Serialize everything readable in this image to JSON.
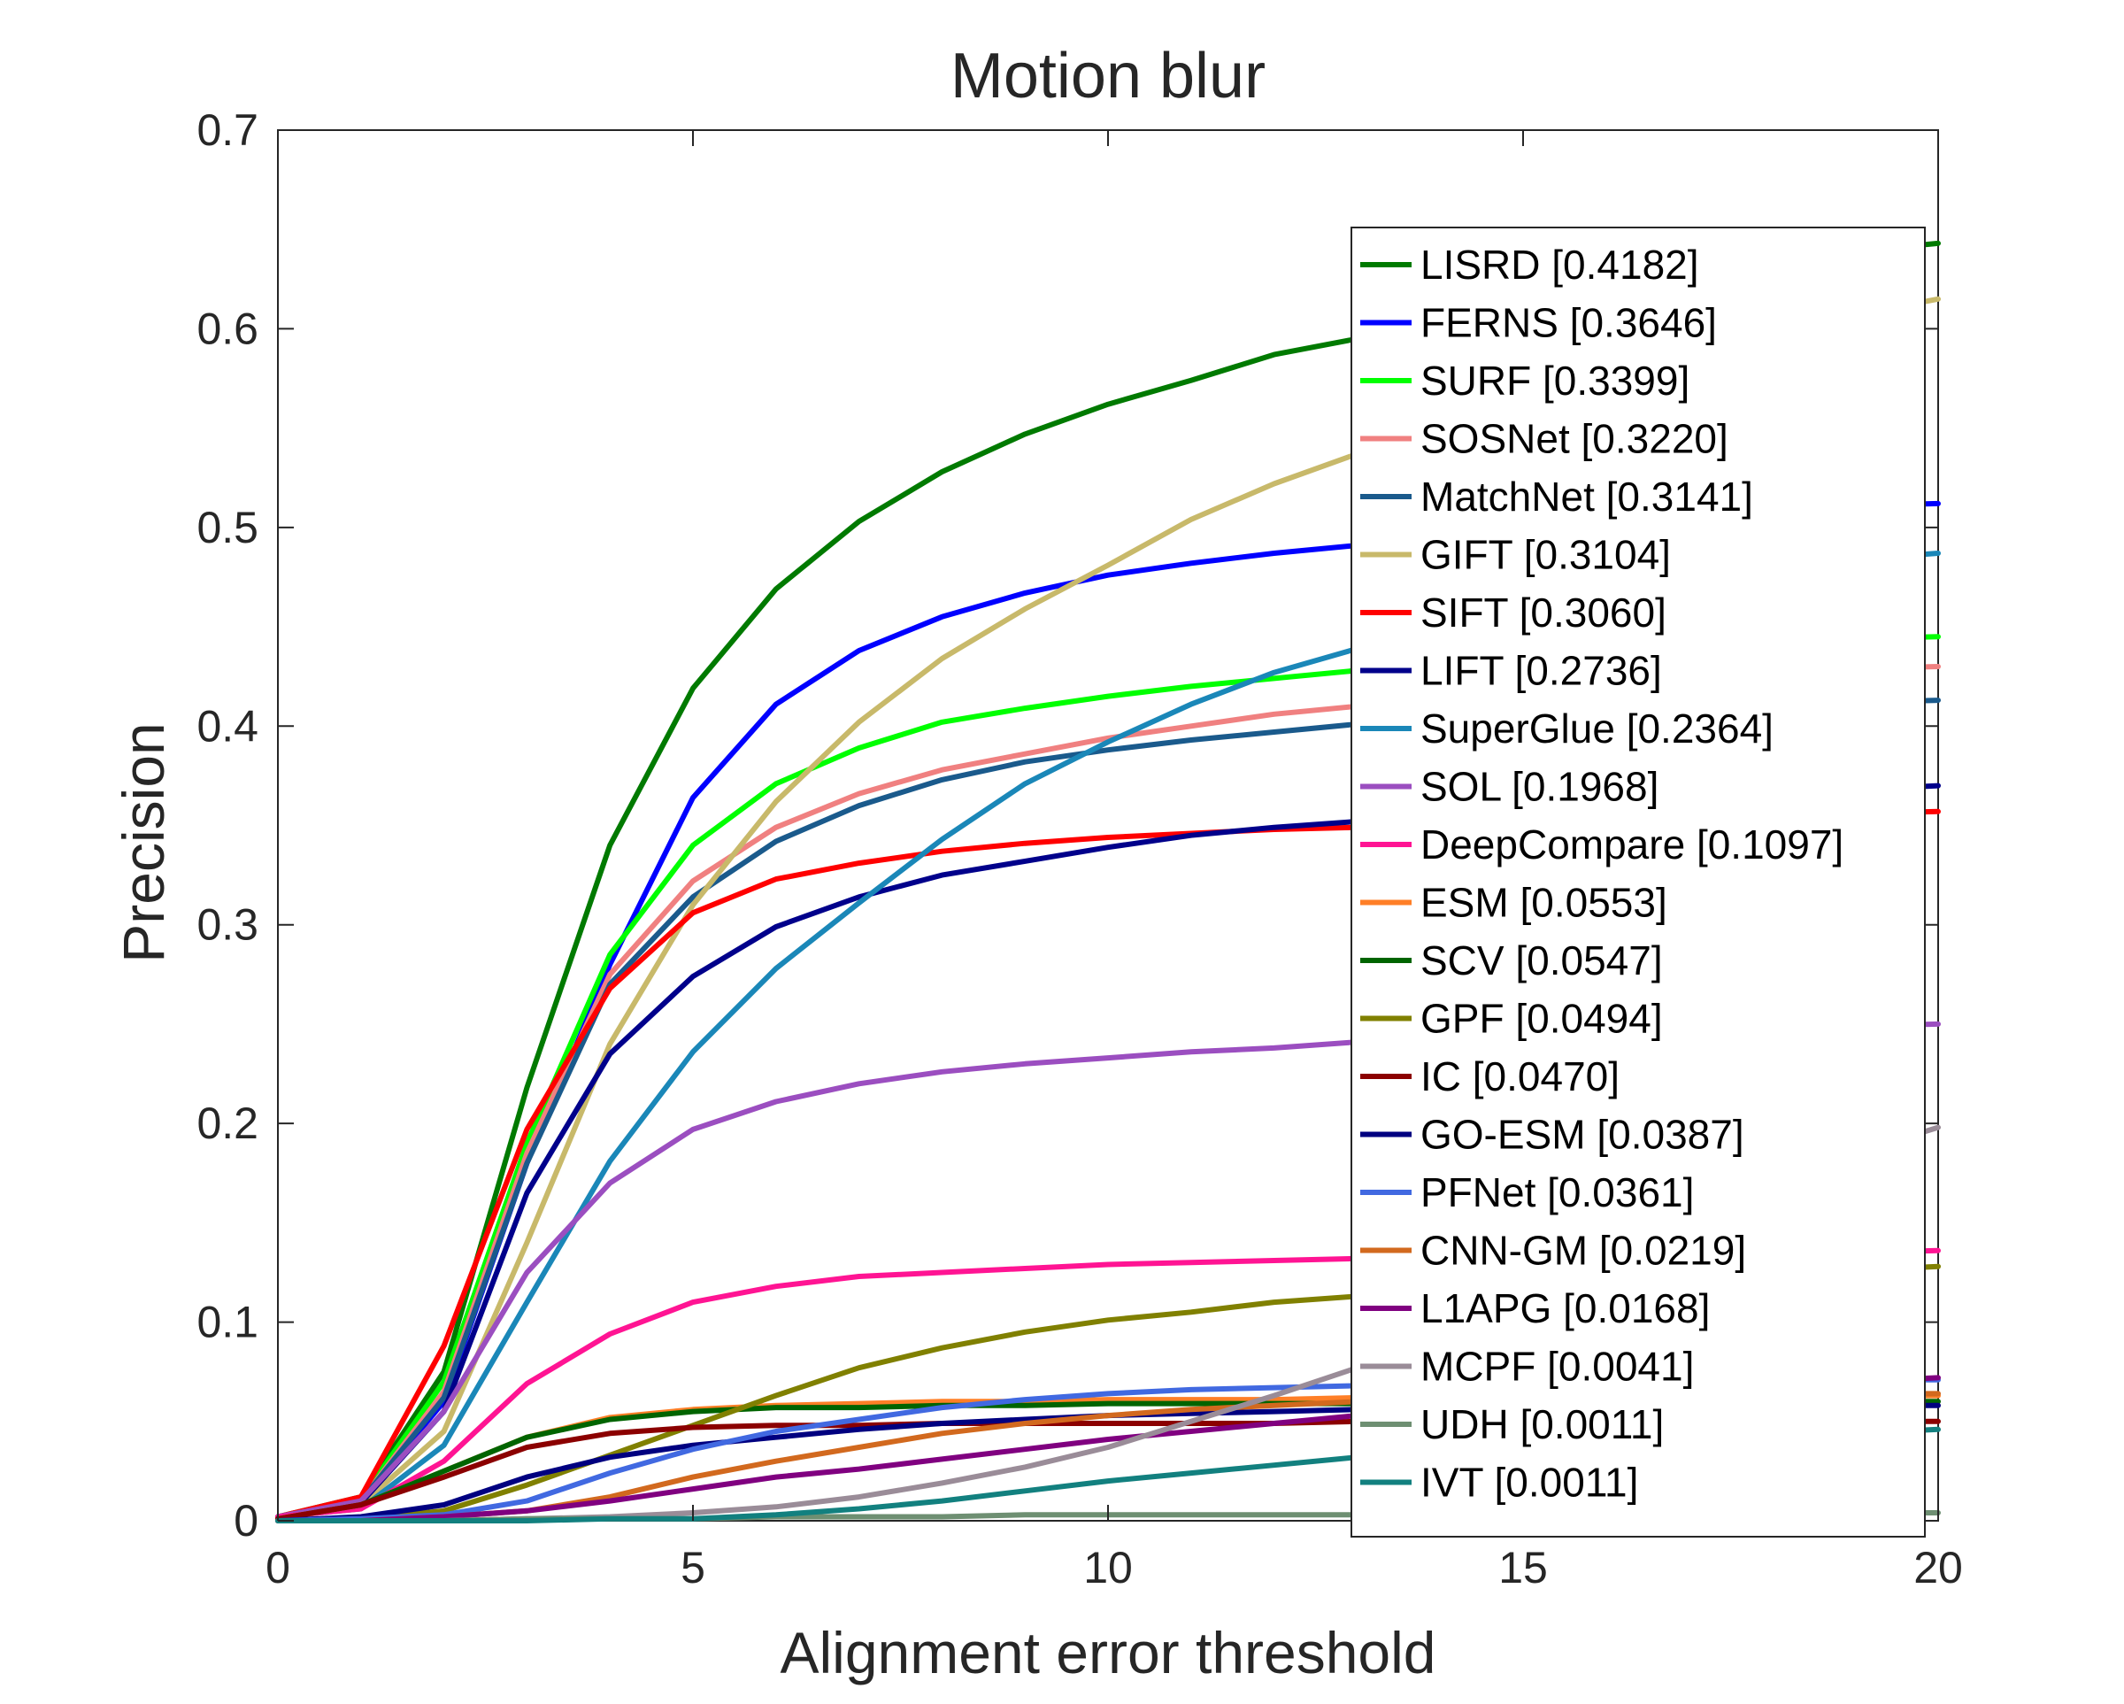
{
  "chart_data": {
    "type": "line",
    "title": "Motion blur",
    "xlabel": "Alignment error threshold",
    "ylabel": "Precision",
    "xlim": [
      0,
      20
    ],
    "ylim": [
      0,
      0.7
    ],
    "xticks": [
      "0",
      "5",
      "10",
      "15",
      "20"
    ],
    "yticks": [
      "0",
      "0.1",
      "0.2",
      "0.3",
      "0.4",
      "0.5",
      "0.6",
      "0.7"
    ],
    "grid": false,
    "legend_position": "upper right, inside",
    "x": [
      0,
      1,
      2,
      3,
      4,
      5,
      6,
      7,
      8,
      9,
      10,
      11,
      12,
      13,
      14,
      15,
      16,
      17,
      18,
      19,
      20
    ],
    "series": [
      {
        "name": "LISRD [0.4182]",
        "color": "#007a00",
        "values": [
          0.002,
          0.012,
          0.075,
          0.218,
          0.34,
          0.419,
          0.469,
          0.503,
          0.528,
          0.547,
          0.562,
          0.574,
          0.587,
          0.595,
          0.604,
          0.613,
          0.621,
          0.628,
          0.634,
          0.639,
          0.643
        ]
      },
      {
        "name": "FERNS [0.3646]",
        "color": "#0000ff",
        "values": [
          0.002,
          0.01,
          0.06,
          0.18,
          0.28,
          0.364,
          0.411,
          0.438,
          0.455,
          0.467,
          0.476,
          0.482,
          0.487,
          0.491,
          0.495,
          0.499,
          0.503,
          0.506,
          0.509,
          0.511,
          0.512
        ]
      },
      {
        "name": "SURF [0.3399]",
        "color": "#00ff00",
        "values": [
          0.002,
          0.011,
          0.07,
          0.19,
          0.285,
          0.34,
          0.371,
          0.389,
          0.402,
          0.409,
          0.415,
          0.42,
          0.424,
          0.428,
          0.431,
          0.434,
          0.437,
          0.44,
          0.442,
          0.444,
          0.445
        ]
      },
      {
        "name": "SOSNet [0.3220]",
        "color": "#f08080",
        "values": [
          0.002,
          0.01,
          0.065,
          0.185,
          0.275,
          0.322,
          0.349,
          0.366,
          0.378,
          0.386,
          0.394,
          0.4,
          0.406,
          0.41,
          0.414,
          0.418,
          0.422,
          0.425,
          0.427,
          0.429,
          0.43
        ]
      },
      {
        "name": "MatchNet [0.3141]",
        "color": "#1a5a8c",
        "values": [
          0.002,
          0.01,
          0.062,
          0.18,
          0.27,
          0.314,
          0.342,
          0.36,
          0.373,
          0.382,
          0.388,
          0.393,
          0.397,
          0.401,
          0.404,
          0.406,
          0.408,
          0.41,
          0.411,
          0.412,
          0.413
        ]
      },
      {
        "name": "GIFT [0.3104]",
        "color": "#c8b96a",
        "values": [
          0.002,
          0.008,
          0.045,
          0.14,
          0.24,
          0.31,
          0.362,
          0.402,
          0.434,
          0.459,
          0.481,
          0.504,
          0.522,
          0.537,
          0.552,
          0.565,
          0.577,
          0.588,
          0.598,
          0.607,
          0.615
        ]
      },
      {
        "name": "SIFT [0.3060]",
        "color": "#ff0000",
        "values": [
          0.002,
          0.012,
          0.088,
          0.197,
          0.268,
          0.306,
          0.323,
          0.331,
          0.337,
          0.341,
          0.344,
          0.346,
          0.348,
          0.349,
          0.351,
          0.352,
          0.353,
          0.354,
          0.355,
          0.356,
          0.357
        ]
      },
      {
        "name": "LIFT [0.2736]",
        "color": "#00008b",
        "values": [
          0.002,
          0.009,
          0.055,
          0.165,
          0.235,
          0.274,
          0.299,
          0.314,
          0.325,
          0.332,
          0.339,
          0.345,
          0.349,
          0.352,
          0.355,
          0.358,
          0.361,
          0.364,
          0.366,
          0.368,
          0.37
        ]
      },
      {
        "name": "SuperGlue [0.2364]",
        "color": "#1a87b8",
        "values": [
          0.002,
          0.006,
          0.038,
          0.11,
          0.181,
          0.236,
          0.278,
          0.311,
          0.343,
          0.371,
          0.392,
          0.411,
          0.427,
          0.439,
          0.449,
          0.458,
          0.466,
          0.473,
          0.479,
          0.484,
          0.487
        ]
      },
      {
        "name": "SOL [0.1968]",
        "color": "#9b4ec0",
        "values": [
          0.002,
          0.01,
          0.055,
          0.125,
          0.17,
          0.197,
          0.211,
          0.22,
          0.226,
          0.23,
          0.233,
          0.236,
          0.238,
          0.241,
          0.243,
          0.244,
          0.245,
          0.247,
          0.248,
          0.249,
          0.25
        ]
      },
      {
        "name": "DeepCompare [0.1097]",
        "color": "#ff1493",
        "values": [
          0.002,
          0.006,
          0.03,
          0.069,
          0.094,
          0.11,
          0.118,
          0.123,
          0.125,
          0.127,
          0.129,
          0.13,
          0.131,
          0.132,
          0.133,
          0.133,
          0.134,
          0.134,
          0.135,
          0.135,
          0.136
        ]
      },
      {
        "name": "ESM [0.0553]",
        "color": "#ff7f27",
        "values": [
          0.001,
          0.008,
          0.025,
          0.042,
          0.052,
          0.056,
          0.058,
          0.059,
          0.06,
          0.06,
          0.061,
          0.061,
          0.061,
          0.062,
          0.062,
          0.062,
          0.062,
          0.063,
          0.063,
          0.063,
          0.063
        ]
      },
      {
        "name": "SCV [0.0547]",
        "color": "#006400",
        "values": [
          0.001,
          0.008,
          0.025,
          0.042,
          0.051,
          0.055,
          0.057,
          0.057,
          0.058,
          0.058,
          0.059,
          0.059,
          0.059,
          0.059,
          0.06,
          0.06,
          0.06,
          0.06,
          0.06,
          0.06,
          0.06
        ]
      },
      {
        "name": "GPF [0.0494]",
        "color": "#808000",
        "values": [
          0.0,
          0.001,
          0.005,
          0.018,
          0.033,
          0.048,
          0.063,
          0.077,
          0.087,
          0.095,
          0.101,
          0.105,
          0.11,
          0.113,
          0.116,
          0.119,
          0.121,
          0.123,
          0.125,
          0.126,
          0.128
        ]
      },
      {
        "name": "IC [0.0470]",
        "color": "#8b0000",
        "values": [
          0.001,
          0.008,
          0.022,
          0.037,
          0.044,
          0.047,
          0.048,
          0.048,
          0.049,
          0.049,
          0.049,
          0.049,
          0.049,
          0.05,
          0.05,
          0.05,
          0.05,
          0.05,
          0.05,
          0.05,
          0.05
        ]
      },
      {
        "name": "GO-ESM [0.0387]",
        "color": "#000080",
        "values": [
          0.0,
          0.002,
          0.008,
          0.022,
          0.032,
          0.038,
          0.042,
          0.046,
          0.049,
          0.051,
          0.053,
          0.054,
          0.055,
          0.056,
          0.056,
          0.057,
          0.057,
          0.057,
          0.058,
          0.058,
          0.058
        ]
      },
      {
        "name": "PFNet [0.0361]",
        "color": "#4169e1",
        "values": [
          0.0,
          0.001,
          0.003,
          0.01,
          0.024,
          0.036,
          0.045,
          0.051,
          0.057,
          0.061,
          0.064,
          0.066,
          0.067,
          0.068,
          0.069,
          0.069,
          0.07,
          0.07,
          0.07,
          0.071,
          0.071
        ]
      },
      {
        "name": "CNN-GM [0.0219]",
        "color": "#d2691e",
        "values": [
          0.0,
          0.0,
          0.002,
          0.005,
          0.012,
          0.022,
          0.03,
          0.037,
          0.044,
          0.049,
          0.053,
          0.056,
          0.058,
          0.06,
          0.061,
          0.062,
          0.062,
          0.063,
          0.063,
          0.064,
          0.064
        ]
      },
      {
        "name": "L1APG [0.0168]",
        "color": "#800080",
        "values": [
          0.0,
          0.0,
          0.002,
          0.005,
          0.01,
          0.016,
          0.022,
          0.026,
          0.031,
          0.036,
          0.041,
          0.045,
          0.049,
          0.053,
          0.056,
          0.059,
          0.062,
          0.065,
          0.068,
          0.07,
          0.072
        ]
      },
      {
        "name": "MCPF [0.0041]",
        "color": "#9a8c98",
        "values": [
          0.0,
          0.0,
          0.0,
          0.001,
          0.002,
          0.004,
          0.007,
          0.012,
          0.019,
          0.027,
          0.037,
          0.05,
          0.063,
          0.077,
          0.096,
          0.116,
          0.135,
          0.153,
          0.17,
          0.185,
          0.198
        ]
      },
      {
        "name": "UDH [0.0011]",
        "color": "#6e8f72",
        "values": [
          0.0,
          0.0,
          0.0,
          0.001,
          0.001,
          0.001,
          0.002,
          0.002,
          0.002,
          0.003,
          0.003,
          0.003,
          0.003,
          0.003,
          0.003,
          0.003,
          0.004,
          0.004,
          0.004,
          0.004,
          0.004
        ]
      },
      {
        "name": "IVT [0.0011]",
        "color": "#12807f",
        "values": [
          0.0,
          0.0,
          0.0,
          0.0,
          0.001,
          0.001,
          0.003,
          0.006,
          0.01,
          0.015,
          0.02,
          0.024,
          0.028,
          0.032,
          0.035,
          0.037,
          0.039,
          0.041,
          0.043,
          0.044,
          0.046
        ]
      }
    ]
  }
}
